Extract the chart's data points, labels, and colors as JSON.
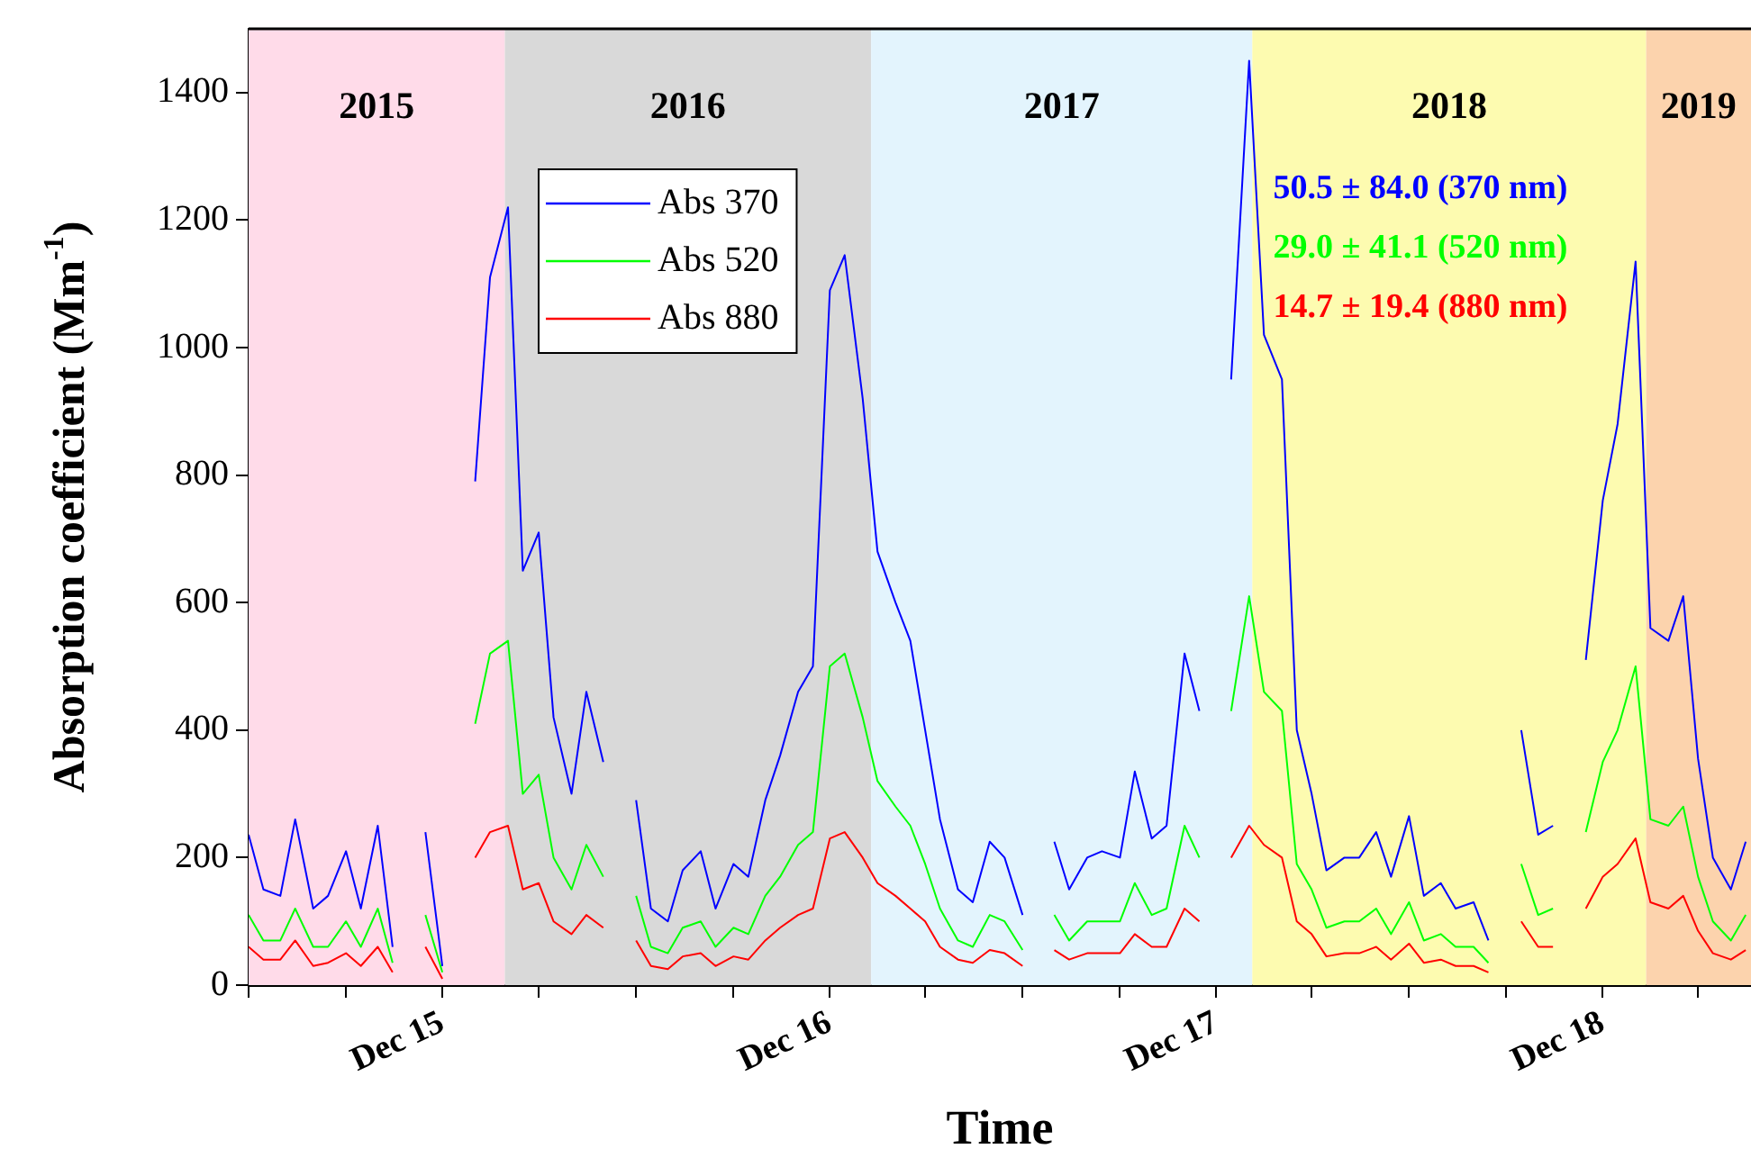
{
  "chart_data": {
    "type": "line",
    "xlabel": "Time",
    "ylabel": "Absorption coefficient (Mm$^{-1}$)",
    "legend": "top left",
    "annotations": [
      "50.5 ± 84.0 (370 nm)",
      "29.0 ± 41.1 (520 nm)",
      "14.7 ± 19.4 (880 nm)"
    ],
    "xlim": [
      "2015-06-01",
      "2019-04-20"
    ],
    "xticks": [
      {
        "value": "2015-06-01",
        "label": null
      },
      {
        "value": "2015-09-01",
        "label": null
      },
      {
        "value": "2015-12-01",
        "label": "Dec 15"
      },
      {
        "value": "2016-03-01",
        "label": null
      },
      {
        "value": "2016-06-01",
        "label": null
      },
      {
        "value": "2016-09-01",
        "label": null
      },
      {
        "value": "2016-12-01",
        "label": "Dec 16"
      },
      {
        "value": "2017-03-01",
        "label": null
      },
      {
        "value": "2017-06-01",
        "label": null
      },
      {
        "value": "2017-09-01",
        "label": null
      },
      {
        "value": "2017-12-01",
        "label": "Dec 17"
      },
      {
        "value": "2018-03-01",
        "label": null
      },
      {
        "value": "2018-06-01",
        "label": null
      },
      {
        "value": "2018-09-01",
        "label": null
      },
      {
        "value": "2018-12-01",
        "label": "Dec 18"
      },
      {
        "value": "2019-03-01",
        "label": null
      }
    ],
    "ylim": [
      0,
      1500
    ],
    "yticks": [
      0,
      200,
      400,
      600,
      800,
      1000,
      1200,
      1400
    ],
    "bands": [
      {
        "axis": "x",
        "from": "2015-06-01",
        "to": "2016-01-29",
        "label": "2015",
        "color": "#ffdbe9"
      },
      {
        "axis": "x",
        "from": "2016-01-29",
        "to": "2017-01-09",
        "label": "2016",
        "color": "#d9d9d9"
      },
      {
        "axis": "x",
        "from": "2017-01-09",
        "to": "2018-01-04",
        "label": "2017",
        "color": "#e3f4fd"
      },
      {
        "axis": "x",
        "from": "2018-01-04",
        "to": "2019-01-11",
        "label": "2018",
        "color": "#fdfbb0"
      },
      {
        "axis": "x",
        "from": "2019-01-11",
        "to": "2019-04-20",
        "label": "2019",
        "color": "#fcd3ad"
      }
    ],
    "x": [
      "2015-06-01",
      "2015-06-15",
      "2015-07-01",
      "2015-07-15",
      "2015-08-01",
      "2015-08-15",
      "2015-09-01",
      "2015-09-15",
      "2015-10-01",
      "2015-10-15",
      "2015-11-01",
      "2015-11-15",
      "2015-12-01",
      "2015-12-15",
      "2016-01-01",
      "2016-01-15",
      "2016-02-01",
      "2016-02-15",
      "2016-03-01",
      "2016-03-15",
      "2016-04-01",
      "2016-04-15",
      "2016-05-01",
      "2016-05-15",
      "2016-06-01",
      "2016-06-15",
      "2016-07-01",
      "2016-07-15",
      "2016-08-01",
      "2016-08-15",
      "2016-09-01",
      "2016-09-15",
      "2016-10-01",
      "2016-10-15",
      "2016-11-01",
      "2016-11-15",
      "2016-12-01",
      "2016-12-15",
      "2017-01-01",
      "2017-01-15",
      "2017-02-01",
      "2017-02-15",
      "2017-03-01",
      "2017-03-15",
      "2017-04-01",
      "2017-04-15",
      "2017-05-01",
      "2017-05-15",
      "2017-06-01",
      "2017-06-15",
      "2017-07-01",
      "2017-07-15",
      "2017-08-01",
      "2017-08-15",
      "2017-09-01",
      "2017-09-15",
      "2017-10-01",
      "2017-10-15",
      "2017-11-01",
      "2017-11-15",
      "2017-12-01",
      "2017-12-15",
      "2018-01-01",
      "2018-01-15",
      "2018-02-01",
      "2018-02-15",
      "2018-03-01",
      "2018-03-15",
      "2018-04-01",
      "2018-04-15",
      "2018-05-01",
      "2018-05-15",
      "2018-06-01",
      "2018-06-15",
      "2018-07-01",
      "2018-07-15",
      "2018-08-01",
      "2018-08-15",
      "2018-09-01",
      "2018-09-15",
      "2018-10-01",
      "2018-10-15",
      "2018-11-01",
      "2018-11-15",
      "2018-12-01",
      "2018-12-15",
      "2019-01-01",
      "2019-01-15",
      "2019-02-01",
      "2019-02-15",
      "2019-03-01",
      "2019-03-15",
      "2019-04-01",
      "2019-04-15"
    ],
    "series": [
      {
        "name": "Abs 370",
        "color": "#0000ff",
        "values": [
          236,
          150,
          140,
          260,
          120,
          140,
          210,
          120,
          250,
          60,
          null,
          240,
          30,
          null,
          790,
          1110,
          1220,
          650,
          710,
          420,
          300,
          460,
          350,
          null,
          290,
          120,
          100,
          180,
          210,
          120,
          190,
          170,
          290,
          360,
          460,
          500,
          1090,
          1145,
          920,
          680,
          600,
          540,
          400,
          260,
          150,
          130,
          225,
          200,
          110,
          null,
          225,
          150,
          200,
          210,
          200,
          335,
          230,
          250,
          520,
          430,
          null,
          950,
          1450,
          1020,
          950,
          400,
          300,
          180,
          200,
          200,
          240,
          170,
          265,
          140,
          160,
          120,
          130,
          70,
          null,
          400,
          236,
          250,
          null,
          510,
          760,
          880,
          1135,
          560,
          540,
          610,
          355,
          200,
          150,
          225
        ]
      },
      {
        "name": "Abs 520",
        "color": "#00ff00",
        "values": [
          110,
          70,
          70,
          120,
          60,
          60,
          100,
          60,
          120,
          35,
          null,
          110,
          20,
          null,
          410,
          520,
          540,
          300,
          330,
          200,
          150,
          220,
          170,
          null,
          140,
          60,
          50,
          90,
          100,
          60,
          90,
          80,
          140,
          170,
          220,
          240,
          500,
          520,
          420,
          320,
          280,
          250,
          190,
          120,
          70,
          60,
          110,
          100,
          55,
          null,
          110,
          70,
          100,
          100,
          100,
          160,
          110,
          120,
          250,
          200,
          null,
          430,
          610,
          460,
          430,
          190,
          150,
          90,
          100,
          100,
          120,
          80,
          130,
          70,
          80,
          60,
          60,
          35,
          null,
          190,
          110,
          120,
          null,
          240,
          350,
          400,
          500,
          260,
          250,
          280,
          170,
          100,
          70,
          110
        ]
      },
      {
        "name": "Abs 880",
        "color": "#ff0000",
        "values": [
          60,
          40,
          40,
          70,
          30,
          35,
          50,
          30,
          60,
          20,
          null,
          60,
          10,
          null,
          200,
          240,
          250,
          150,
          160,
          100,
          80,
          110,
          90,
          null,
          70,
          30,
          25,
          45,
          50,
          30,
          45,
          40,
          70,
          90,
          110,
          120,
          230,
          240,
          200,
          160,
          140,
          120,
          100,
          60,
          40,
          35,
          55,
          50,
          30,
          null,
          55,
          40,
          50,
          50,
          50,
          80,
          60,
          60,
          120,
          100,
          null,
          200,
          250,
          220,
          200,
          100,
          80,
          45,
          50,
          50,
          60,
          40,
          65,
          35,
          40,
          30,
          30,
          20,
          null,
          100,
          60,
          60,
          null,
          120,
          170,
          190,
          230,
          130,
          120,
          140,
          85,
          50,
          40,
          55
        ]
      }
    ]
  }
}
